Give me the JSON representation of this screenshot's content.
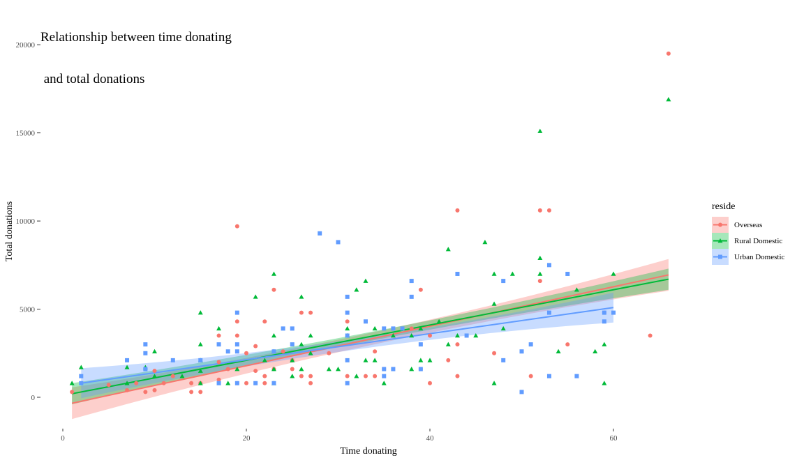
{
  "chart_data": {
    "type": "scatter",
    "title_lines": [
      "Relationship between time donating",
      " and total donations"
    ],
    "xlabel": "Time donating",
    "ylabel": "Total donations",
    "xlim": [
      -1,
      70
    ],
    "ylim": [
      -1500,
      20500
    ],
    "x_ticks": [
      0,
      20,
      40,
      60
    ],
    "y_ticks": [
      0,
      5000,
      10000,
      15000,
      20000
    ],
    "grid": false,
    "legend": {
      "title": "reside",
      "position": "right"
    },
    "series": [
      {
        "name": "Overseas",
        "color": "#F8766D",
        "shape": "circle",
        "fit": {
          "intercept": -450,
          "slope": 112,
          "x_range": [
            1,
            66
          ],
          "se_low": 350,
          "se_high": 900
        },
        "points": [
          [
            1,
            300
          ],
          [
            5,
            700
          ],
          [
            7,
            400
          ],
          [
            8,
            800
          ],
          [
            9,
            300
          ],
          [
            10,
            400
          ],
          [
            10,
            1500
          ],
          [
            11,
            800
          ],
          [
            12,
            1200
          ],
          [
            14,
            300
          ],
          [
            14,
            800
          ],
          [
            15,
            300
          ],
          [
            15,
            800
          ],
          [
            17,
            1000
          ],
          [
            17,
            2000
          ],
          [
            17,
            3500
          ],
          [
            18,
            1600
          ],
          [
            19,
            800
          ],
          [
            19,
            3500
          ],
          [
            19,
            4300
          ],
          [
            19,
            9700
          ],
          [
            20,
            800
          ],
          [
            20,
            2500
          ],
          [
            21,
            1500
          ],
          [
            21,
            2900
          ],
          [
            22,
            800
          ],
          [
            22,
            1200
          ],
          [
            22,
            4300
          ],
          [
            23,
            1600
          ],
          [
            23,
            6100
          ],
          [
            24,
            2600
          ],
          [
            25,
            1600
          ],
          [
            25,
            2100
          ],
          [
            26,
            1200
          ],
          [
            26,
            4800
          ],
          [
            27,
            800
          ],
          [
            27,
            1200
          ],
          [
            27,
            4800
          ],
          [
            29,
            2500
          ],
          [
            31,
            1200
          ],
          [
            31,
            4300
          ],
          [
            33,
            1200
          ],
          [
            34,
            1200
          ],
          [
            34,
            2600
          ],
          [
            35,
            1600
          ],
          [
            38,
            3900
          ],
          [
            39,
            1600
          ],
          [
            39,
            6100
          ],
          [
            40,
            800
          ],
          [
            40,
            3500
          ],
          [
            42,
            2100
          ],
          [
            43,
            1200
          ],
          [
            43,
            3000
          ],
          [
            43,
            10600
          ],
          [
            47,
            2500
          ],
          [
            51,
            1200
          ],
          [
            52,
            6600
          ],
          [
            52,
            10600
          ],
          [
            53,
            10600
          ],
          [
            55,
            3000
          ],
          [
            59,
            4800
          ],
          [
            64,
            3500
          ],
          [
            66,
            19500
          ]
        ]
      },
      {
        "name": "Rural Domestic",
        "color": "#00BA38",
        "shape": "triangle",
        "fit": {
          "intercept": 100,
          "slope": 100,
          "x_range": [
            1,
            66
          ],
          "se_low": 250,
          "se_high": 600
        },
        "points": [
          [
            1,
            800
          ],
          [
            2,
            1700
          ],
          [
            7,
            800
          ],
          [
            7,
            1700
          ],
          [
            9,
            1700
          ],
          [
            10,
            1200
          ],
          [
            10,
            2600
          ],
          [
            13,
            1200
          ],
          [
            15,
            800
          ],
          [
            15,
            1500
          ],
          [
            15,
            2100
          ],
          [
            15,
            3000
          ],
          [
            15,
            4800
          ],
          [
            17,
            3900
          ],
          [
            18,
            800
          ],
          [
            19,
            1600
          ],
          [
            21,
            5700
          ],
          [
            22,
            2100
          ],
          [
            23,
            800
          ],
          [
            23,
            1600
          ],
          [
            23,
            2600
          ],
          [
            23,
            3500
          ],
          [
            23,
            7000
          ],
          [
            25,
            1200
          ],
          [
            25,
            2100
          ],
          [
            26,
            1600
          ],
          [
            26,
            3000
          ],
          [
            26,
            5700
          ],
          [
            27,
            2500
          ],
          [
            27,
            3500
          ],
          [
            29,
            1600
          ],
          [
            30,
            1600
          ],
          [
            31,
            3900
          ],
          [
            31,
            3500
          ],
          [
            32,
            1200
          ],
          [
            32,
            6100
          ],
          [
            33,
            2100
          ],
          [
            33,
            6600
          ],
          [
            34,
            2100
          ],
          [
            34,
            3900
          ],
          [
            35,
            800
          ],
          [
            36,
            3500
          ],
          [
            38,
            1600
          ],
          [
            38,
            3500
          ],
          [
            39,
            2100
          ],
          [
            39,
            3900
          ],
          [
            40,
            2100
          ],
          [
            41,
            4300
          ],
          [
            42,
            3000
          ],
          [
            42,
            8400
          ],
          [
            43,
            3500
          ],
          [
            45,
            3500
          ],
          [
            46,
            8800
          ],
          [
            47,
            800
          ],
          [
            47,
            5300
          ],
          [
            47,
            7000
          ],
          [
            48,
            3900
          ],
          [
            49,
            7000
          ],
          [
            52,
            7000
          ],
          [
            52,
            7900
          ],
          [
            52,
            15100
          ],
          [
            54,
            2600
          ],
          [
            56,
            6100
          ],
          [
            58,
            2600
          ],
          [
            59,
            800
          ],
          [
            59,
            3000
          ],
          [
            60,
            7000
          ],
          [
            66,
            16900
          ]
        ]
      },
      {
        "name": "Urban Domestic",
        "color": "#619CFF",
        "shape": "square",
        "fit": {
          "intercept": 650,
          "slope": 74,
          "x_range": [
            2,
            60
          ],
          "se_low": 300,
          "se_high": 850
        },
        "points": [
          [
            2,
            800
          ],
          [
            2,
            1200
          ],
          [
            7,
            2100
          ],
          [
            9,
            3000
          ],
          [
            9,
            2500
          ],
          [
            9,
            1600
          ],
          [
            12,
            2100
          ],
          [
            15,
            2100
          ],
          [
            17,
            800
          ],
          [
            17,
            3000
          ],
          [
            18,
            2600
          ],
          [
            19,
            800
          ],
          [
            19,
            2600
          ],
          [
            19,
            3000
          ],
          [
            19,
            4800
          ],
          [
            21,
            800
          ],
          [
            23,
            800
          ],
          [
            23,
            2600
          ],
          [
            24,
            3900
          ],
          [
            25,
            3900
          ],
          [
            25,
            3000
          ],
          [
            28,
            9300
          ],
          [
            30,
            8800
          ],
          [
            31,
            800
          ],
          [
            31,
            2100
          ],
          [
            31,
            3500
          ],
          [
            31,
            4800
          ],
          [
            31,
            5700
          ],
          [
            33,
            4300
          ],
          [
            35,
            1200
          ],
          [
            35,
            1600
          ],
          [
            35,
            3900
          ],
          [
            36,
            1600
          ],
          [
            36,
            3900
          ],
          [
            37,
            3900
          ],
          [
            38,
            5700
          ],
          [
            38,
            6600
          ],
          [
            39,
            1600
          ],
          [
            39,
            3000
          ],
          [
            43,
            7000
          ],
          [
            44,
            3500
          ],
          [
            48,
            2100
          ],
          [
            48,
            6600
          ],
          [
            50,
            300
          ],
          [
            50,
            2600
          ],
          [
            51,
            3000
          ],
          [
            53,
            1200
          ],
          [
            53,
            4800
          ],
          [
            53,
            7500
          ],
          [
            55,
            7000
          ],
          [
            56,
            1200
          ],
          [
            59,
            4300
          ],
          [
            59,
            4800
          ],
          [
            60,
            4800
          ]
        ]
      }
    ]
  }
}
